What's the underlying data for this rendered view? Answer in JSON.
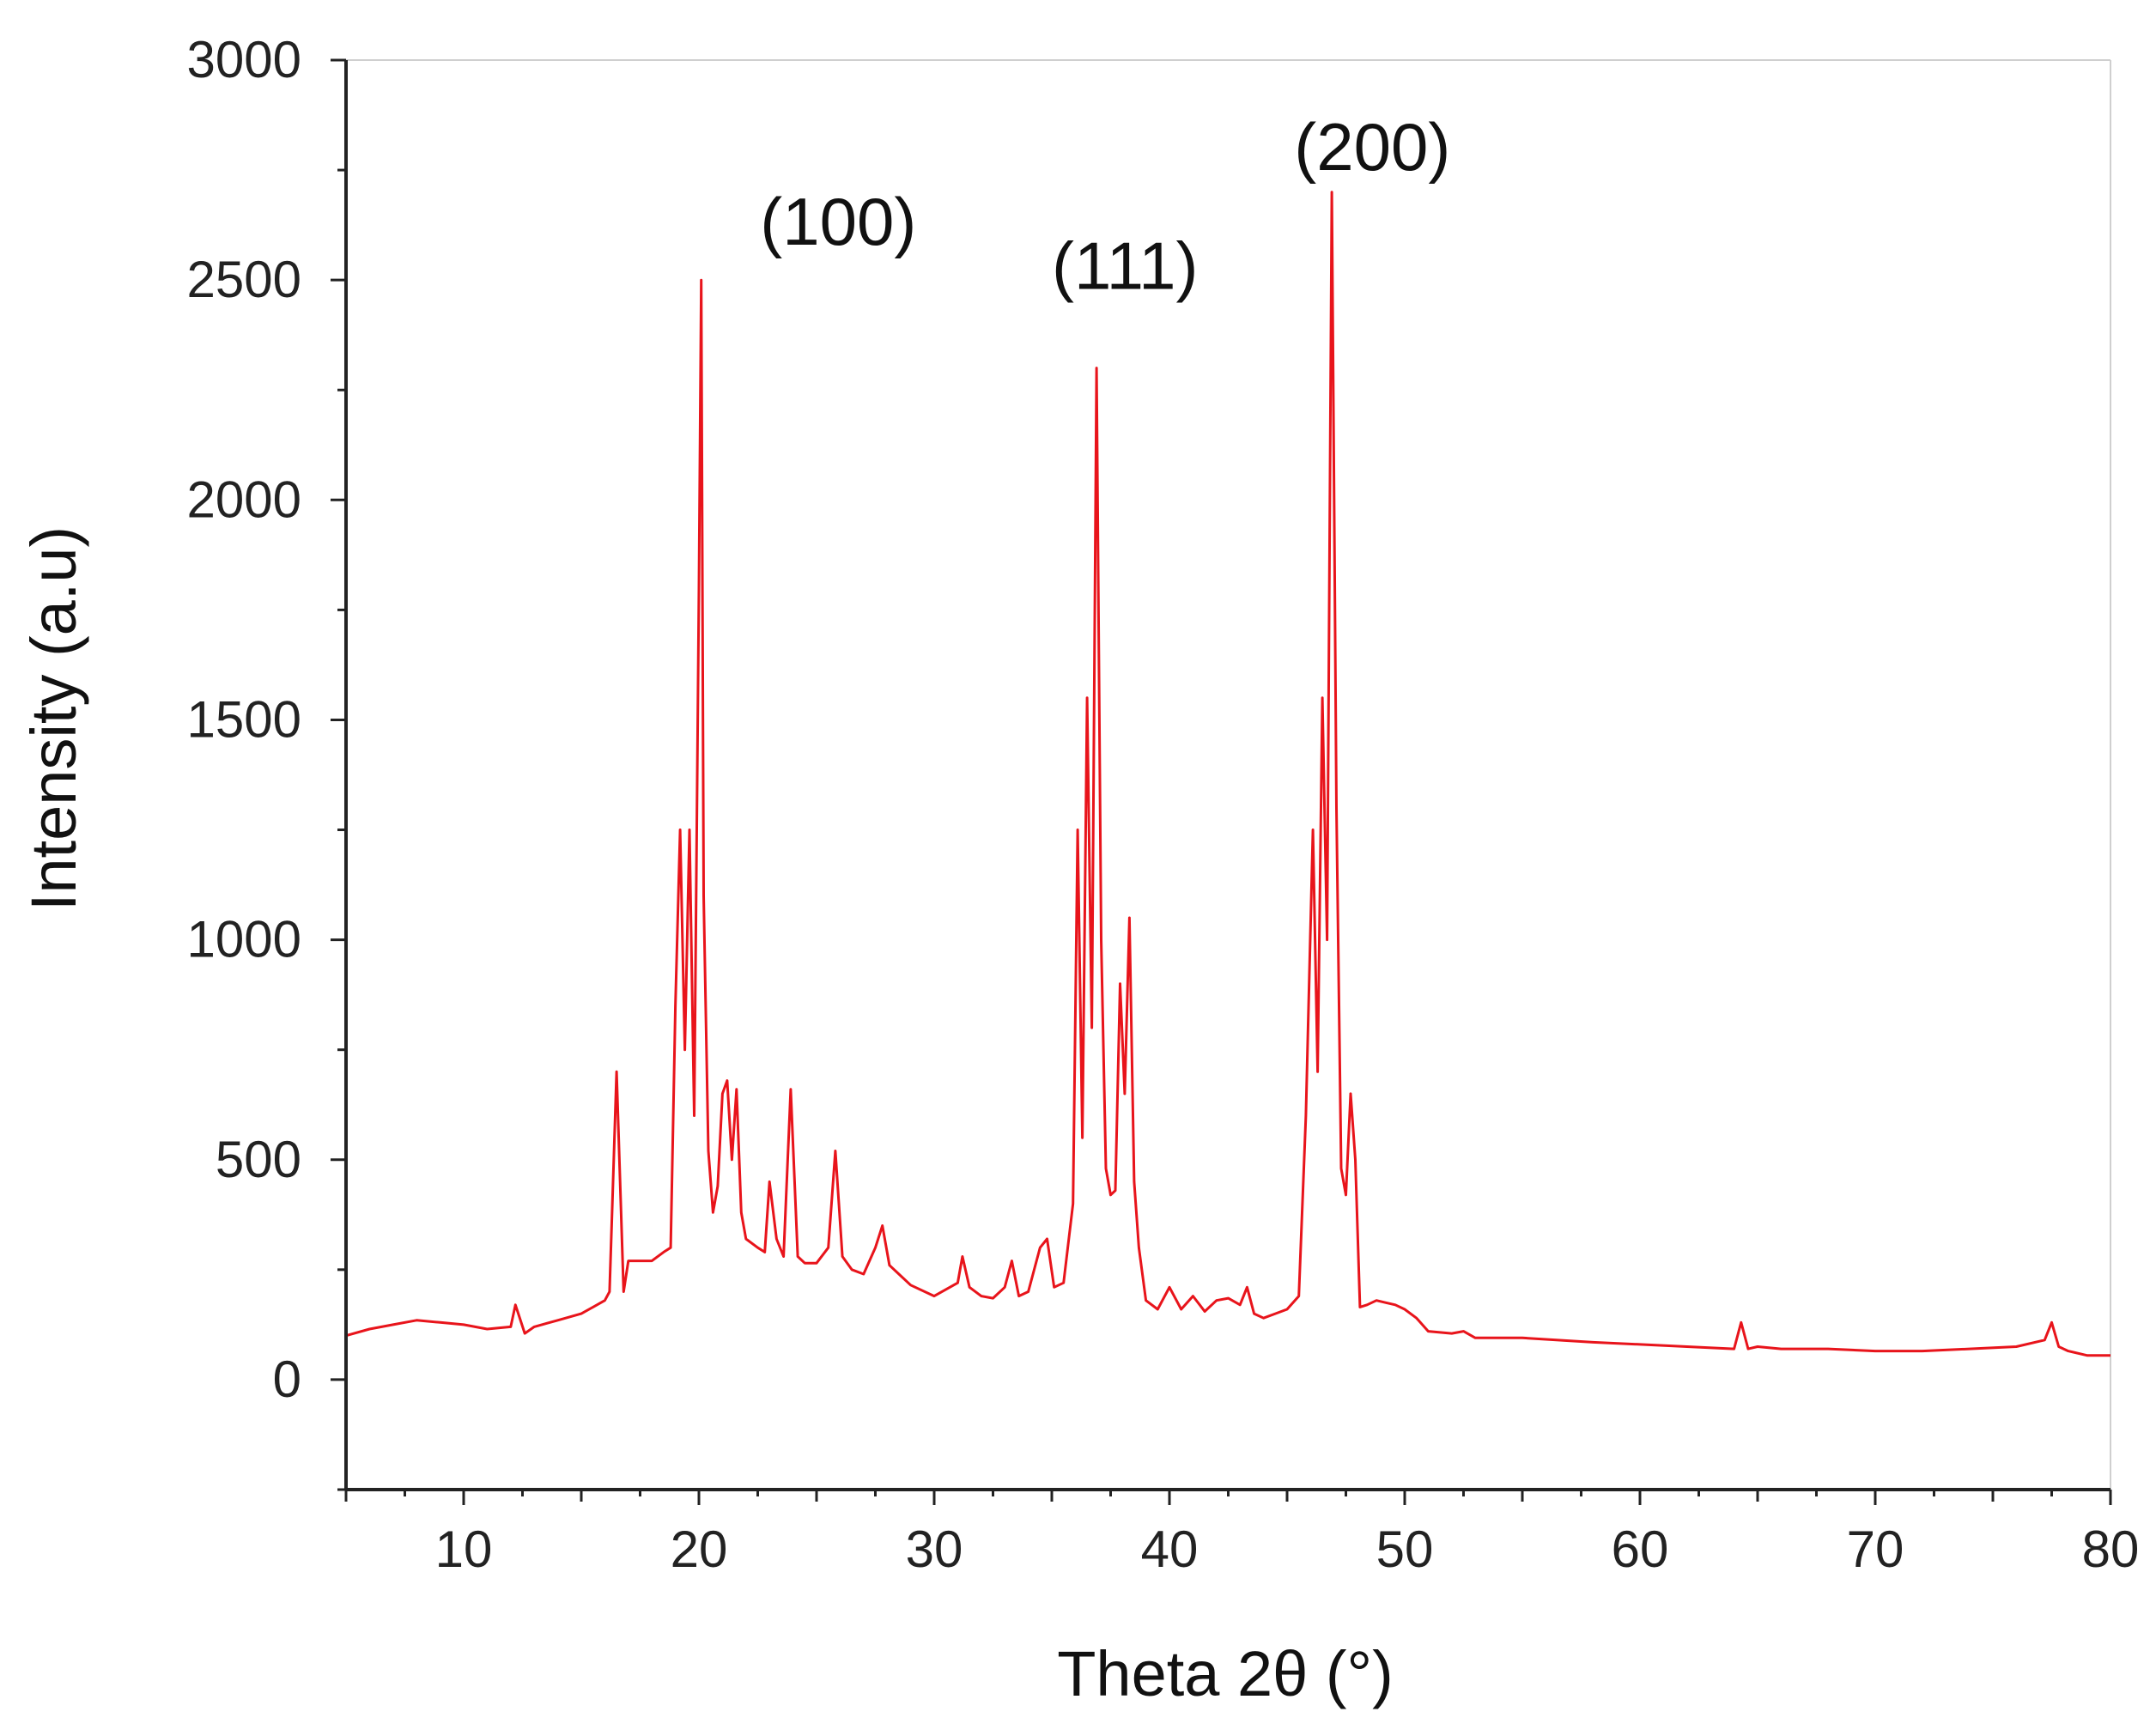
{
  "chart_data": {
    "type": "line",
    "xlabel": "Theta 2θ (°)",
    "ylabel": "Intensity (a.u)",
    "xlim": [
      5,
      80
    ],
    "ylim": [
      -250,
      3000
    ],
    "xticks": [
      10,
      20,
      30,
      40,
      50,
      60,
      70,
      80
    ],
    "yticks": [
      0,
      500,
      1000,
      1500,
      2000,
      2500,
      3000
    ],
    "grid": false,
    "series": [
      {
        "color": "#e8141b",
        "x": [
          5,
          6,
          7,
          8,
          9,
          10,
          11,
          12,
          12.2,
          12.6,
          13,
          14,
          15,
          15.5,
          16,
          16.2,
          16.5,
          16.8,
          17,
          17.5,
          18,
          18.5,
          18.8,
          19,
          19.2,
          19.4,
          19.6,
          19.8,
          20,
          20.1,
          20.2,
          20.4,
          20.6,
          20.8,
          21,
          21.2,
          21.4,
          21.6,
          21.8,
          22,
          22.5,
          22.8,
          23,
          23.3,
          23.6,
          23.9,
          24.2,
          24.5,
          25,
          25.5,
          25.8,
          26.1,
          26.5,
          27,
          27.5,
          27.8,
          28.1,
          28.5,
          29,
          30,
          31,
          31.2,
          31.5,
          32,
          32.5,
          33,
          33.3,
          33.6,
          34,
          34.5,
          34.8,
          35.1,
          35.5,
          35.9,
          36.1,
          36.3,
          36.5,
          36.7,
          36.9,
          37.1,
          37.3,
          37.5,
          37.7,
          37.9,
          38.1,
          38.3,
          38.5,
          38.7,
          39,
          39.5,
          40,
          40.5,
          41,
          41.5,
          42,
          42.5,
          43,
          43.3,
          43.6,
          44,
          44.5,
          45,
          45.5,
          45.8,
          46.1,
          46.3,
          46.5,
          46.7,
          46.9,
          47.1,
          47.3,
          47.5,
          47.7,
          47.9,
          48.1,
          48.4,
          48.8,
          49.2,
          49.6,
          50,
          50.5,
          51,
          52,
          52.5,
          53,
          55,
          58,
          60,
          62,
          64,
          64.3,
          64.6,
          65,
          66,
          68,
          70,
          72,
          74,
          76,
          77.2,
          77.5,
          77.8,
          78.2,
          79,
          80
        ],
        "y": [
          100,
          115,
          125,
          135,
          130,
          125,
          115,
          120,
          170,
          105,
          120,
          135,
          150,
          165,
          180,
          200,
          700,
          200,
          270,
          270,
          270,
          290,
          300,
          850,
          1250,
          750,
          1250,
          600,
          1800,
          2500,
          1100,
          520,
          380,
          440,
          650,
          680,
          500,
          660,
          380,
          320,
          300,
          290,
          450,
          320,
          280,
          660,
          280,
          265,
          265,
          300,
          520,
          280,
          250,
          240,
          300,
          350,
          260,
          240,
          215,
          190,
          220,
          280,
          210,
          190,
          185,
          210,
          270,
          190,
          200,
          300,
          320,
          210,
          220,
          400,
          1250,
          550,
          1550,
          800,
          2300,
          1000,
          480,
          420,
          430,
          900,
          650,
          1050,
          450,
          300,
          180,
          160,
          210,
          160,
          190,
          155,
          180,
          185,
          170,
          210,
          150,
          140,
          150,
          160,
          190,
          600,
          1250,
          700,
          1550,
          1000,
          2700,
          1300,
          480,
          420,
          650,
          500,
          165,
          170,
          180,
          175,
          170,
          160,
          140,
          110,
          105,
          110,
          95,
          95,
          85,
          80,
          75,
          70,
          130,
          70,
          75,
          70,
          70,
          65,
          65,
          70,
          75,
          90,
          130,
          75,
          65,
          55,
          55
        ]
      }
    ],
    "annotations": [
      {
        "text": "(100)",
        "x": 22.6,
        "y": 2580
      },
      {
        "text": "(111)",
        "x": 35.0,
        "y": 2480
      },
      {
        "text": "(200)",
        "x": 45.3,
        "y": 2750
      }
    ]
  }
}
